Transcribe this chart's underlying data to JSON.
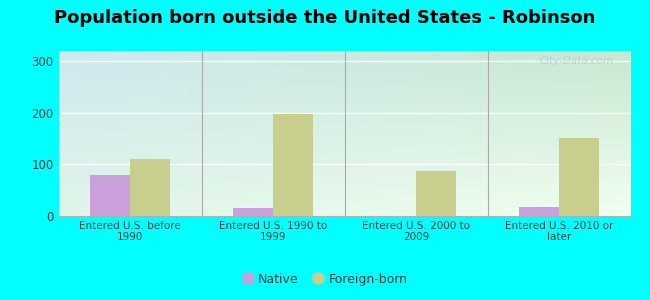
{
  "title": "Population born outside the United States - Robinson",
  "categories": [
    "Entered U.S. before\n1990",
    "Entered U.S. 1990 to\n1999",
    "Entered U.S. 2000 to\n2009",
    "Entered U.S. 2010 or\nlater"
  ],
  "native_values": [
    80,
    15,
    0,
    17
  ],
  "foreign_values": [
    110,
    197,
    88,
    152
  ],
  "native_color": "#c9a0dc",
  "foreign_color": "#c8cf8e",
  "background_color": "#00ffff",
  "ylim": [
    0,
    320
  ],
  "yticks": [
    0,
    100,
    200,
    300
  ],
  "bar_width": 0.28,
  "title_fontsize": 13,
  "legend_native": "Native",
  "legend_foreign": "Foreign-born",
  "watermark": "City-Data.com",
  "grad_colors_top": [
    "#d0e8f0",
    "#c8e8d8"
  ],
  "grad_colors_bottom": [
    "#e8f8e8",
    "#f0fff0"
  ]
}
